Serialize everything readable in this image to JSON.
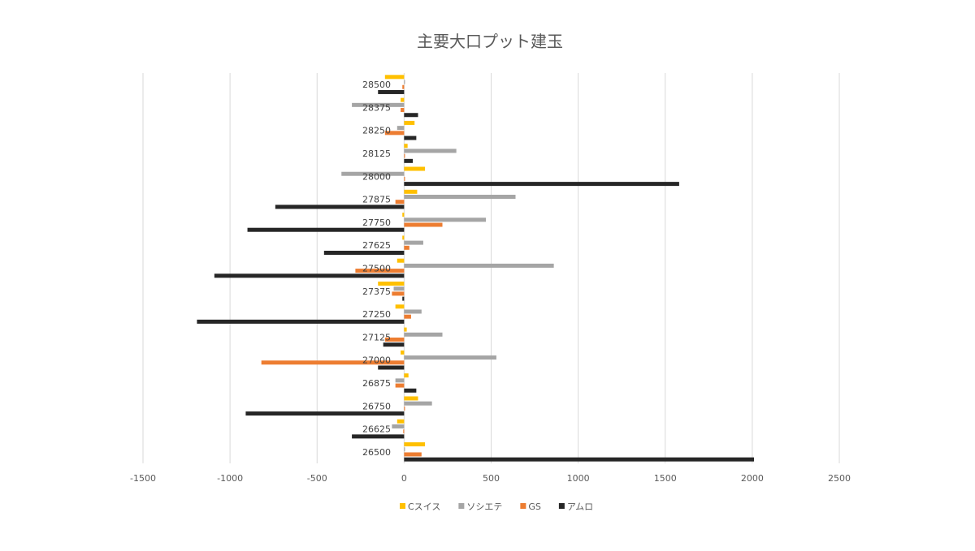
{
  "chart_data": {
    "type": "bar",
    "orientation": "horizontal",
    "title": "主要大口プット建玉",
    "xlabel": "",
    "ylabel": "",
    "xlim": [
      -1500,
      2500
    ],
    "xticks": [
      -1500,
      -1000,
      -500,
      0,
      500,
      1000,
      1500,
      2000,
      2500
    ],
    "grid": true,
    "legend_position": "bottom",
    "categories": [
      "28500",
      "28375",
      "28250",
      "28125",
      "28000",
      "27875",
      "27750",
      "27625",
      "27500",
      "27375",
      "27250",
      "27125",
      "27000",
      "26875",
      "26750",
      "26625",
      "26500"
    ],
    "series": [
      {
        "name": "Cスイス",
        "color": "#FFC000",
        "values": [
          -110,
          -20,
          60,
          20,
          120,
          75,
          -10,
          -10,
          -40,
          -150,
          -50,
          15,
          -20,
          25,
          80,
          -40,
          120
        ]
      },
      {
        "name": "ソシエテ",
        "color": "#A5A5A5",
        "values": [
          5,
          -300,
          -40,
          300,
          -360,
          640,
          470,
          110,
          860,
          -60,
          100,
          220,
          530,
          -50,
          160,
          -70,
          5
        ]
      },
      {
        "name": "GS",
        "color": "#ED7D31",
        "values": [
          -10,
          -20,
          -110,
          5,
          5,
          -50,
          220,
          30,
          -280,
          -70,
          40,
          -110,
          -820,
          -50,
          5,
          -5,
          100
        ]
      },
      {
        "name": "アムロ",
        "color": "#262626",
        "values": [
          -150,
          80,
          70,
          50,
          1580,
          -740,
          -900,
          -460,
          -1090,
          -10,
          -1190,
          -120,
          -150,
          70,
          -910,
          -300,
          2010
        ]
      }
    ]
  }
}
